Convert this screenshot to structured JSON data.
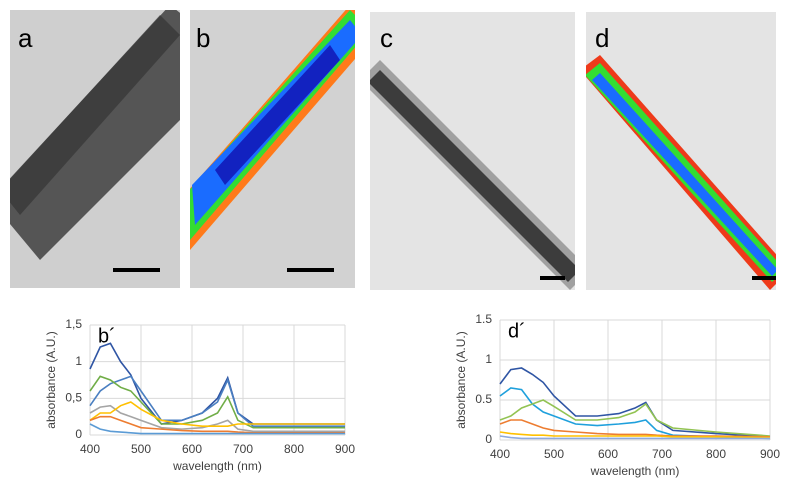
{
  "panels": [
    "a",
    "b",
    "c",
    "d"
  ],
  "chart_data": [
    {
      "type": "line",
      "annotation": "b´",
      "x_label": "wavelength (nm)",
      "y_label": "absorbance (A.U.)",
      "x": [
        400,
        420,
        440,
        460,
        480,
        500,
        540,
        580,
        620,
        650,
        670,
        690,
        720,
        800,
        900
      ],
      "xlim": [
        400,
        900
      ],
      "xticks": [
        400,
        500,
        600,
        700,
        800,
        900
      ],
      "ylim": [
        0,
        1.5
      ],
      "yticks": [
        0,
        {
          "value": 0.5,
          "label": "0,5"
        },
        1,
        {
          "value": 1.5,
          "label": "1,5"
        }
      ],
      "grid": true,
      "series": [
        {
          "color": "#2f55a4",
          "values": [
            0.9,
            1.2,
            1.25,
            1.0,
            0.82,
            0.5,
            0.15,
            0.2,
            0.3,
            0.5,
            0.78,
            0.3,
            0.15,
            0.15,
            0.15
          ]
        },
        {
          "color": "#4a7fc1",
          "values": [
            0.4,
            0.6,
            0.7,
            0.75,
            0.8,
            0.6,
            0.2,
            0.2,
            0.3,
            0.45,
            0.75,
            0.3,
            0.12,
            0.12,
            0.12
          ]
        },
        {
          "color": "#70ad47",
          "values": [
            0.6,
            0.8,
            0.75,
            0.65,
            0.6,
            0.45,
            0.15,
            0.15,
            0.2,
            0.3,
            0.52,
            0.2,
            0.1,
            0.1,
            0.1
          ]
        },
        {
          "color": "#a5a5a5",
          "values": [
            0.3,
            0.38,
            0.4,
            0.3,
            0.25,
            0.2,
            0.1,
            0.08,
            0.1,
            0.15,
            0.2,
            0.08,
            0.05,
            0.05,
            0.05
          ]
        },
        {
          "color": "#ffc000",
          "values": [
            0.2,
            0.3,
            0.3,
            0.4,
            0.45,
            0.35,
            0.2,
            0.15,
            0.12,
            0.12,
            0.12,
            0.15,
            0.15,
            0.15,
            0.15
          ]
        },
        {
          "color": "#ed7d31",
          "values": [
            0.2,
            0.25,
            0.25,
            0.2,
            0.15,
            0.1,
            0.08,
            0.06,
            0.05,
            0.05,
            0.05,
            0.04,
            0.03,
            0.03,
            0.03
          ]
        },
        {
          "color": "#5b9bd5",
          "values": [
            0.15,
            0.08,
            0.05,
            0.04,
            0.03,
            0.02,
            0.02,
            0.02,
            0.02,
            0.02,
            0.02,
            0.02,
            0.02,
            0.02,
            0.02
          ]
        }
      ]
    },
    {
      "type": "line",
      "annotation": "d´",
      "x_label": "wavelength (nm)",
      "y_label": "absorbance (A.U.)",
      "x": [
        400,
        420,
        440,
        460,
        480,
        500,
        540,
        580,
        620,
        650,
        670,
        690,
        720,
        800,
        900
      ],
      "xlim": [
        400,
        900
      ],
      "xticks": [
        400,
        500,
        600,
        700,
        800,
        900
      ],
      "ylim": [
        0,
        1.5
      ],
      "yticks": [
        0,
        0.5,
        1,
        1.5
      ],
      "grid": true,
      "series": [
        {
          "color": "#2f55a4",
          "values": [
            0.7,
            0.88,
            0.9,
            0.82,
            0.72,
            0.55,
            0.3,
            0.3,
            0.33,
            0.4,
            0.47,
            0.25,
            0.12,
            0.08,
            0.04
          ]
        },
        {
          "color": "#1fa0dc",
          "values": [
            0.55,
            0.65,
            0.63,
            0.45,
            0.35,
            0.3,
            0.2,
            0.18,
            0.2,
            0.22,
            0.25,
            0.12,
            0.06,
            0.04,
            0.02
          ]
        },
        {
          "color": "#92c353",
          "values": [
            0.25,
            0.3,
            0.4,
            0.45,
            0.5,
            0.42,
            0.25,
            0.25,
            0.28,
            0.35,
            0.45,
            0.25,
            0.15,
            0.1,
            0.05
          ]
        },
        {
          "color": "#ed7d31",
          "values": [
            0.2,
            0.25,
            0.25,
            0.2,
            0.15,
            0.12,
            0.1,
            0.08,
            0.07,
            0.07,
            0.07,
            0.06,
            0.05,
            0.05,
            0.04
          ]
        },
        {
          "color": "#ffc000",
          "values": [
            0.1,
            0.08,
            0.07,
            0.06,
            0.06,
            0.05,
            0.05,
            0.05,
            0.05,
            0.05,
            0.05,
            0.05,
            0.04,
            0.04,
            0.03
          ]
        },
        {
          "color": "#8faadc",
          "values": [
            0.05,
            0.03,
            0.02,
            0.02,
            0.02,
            0.02,
            0.02,
            0.02,
            0.02,
            0.02,
            0.02,
            0.02,
            0.02,
            0.02,
            0.02
          ]
        }
      ]
    }
  ]
}
